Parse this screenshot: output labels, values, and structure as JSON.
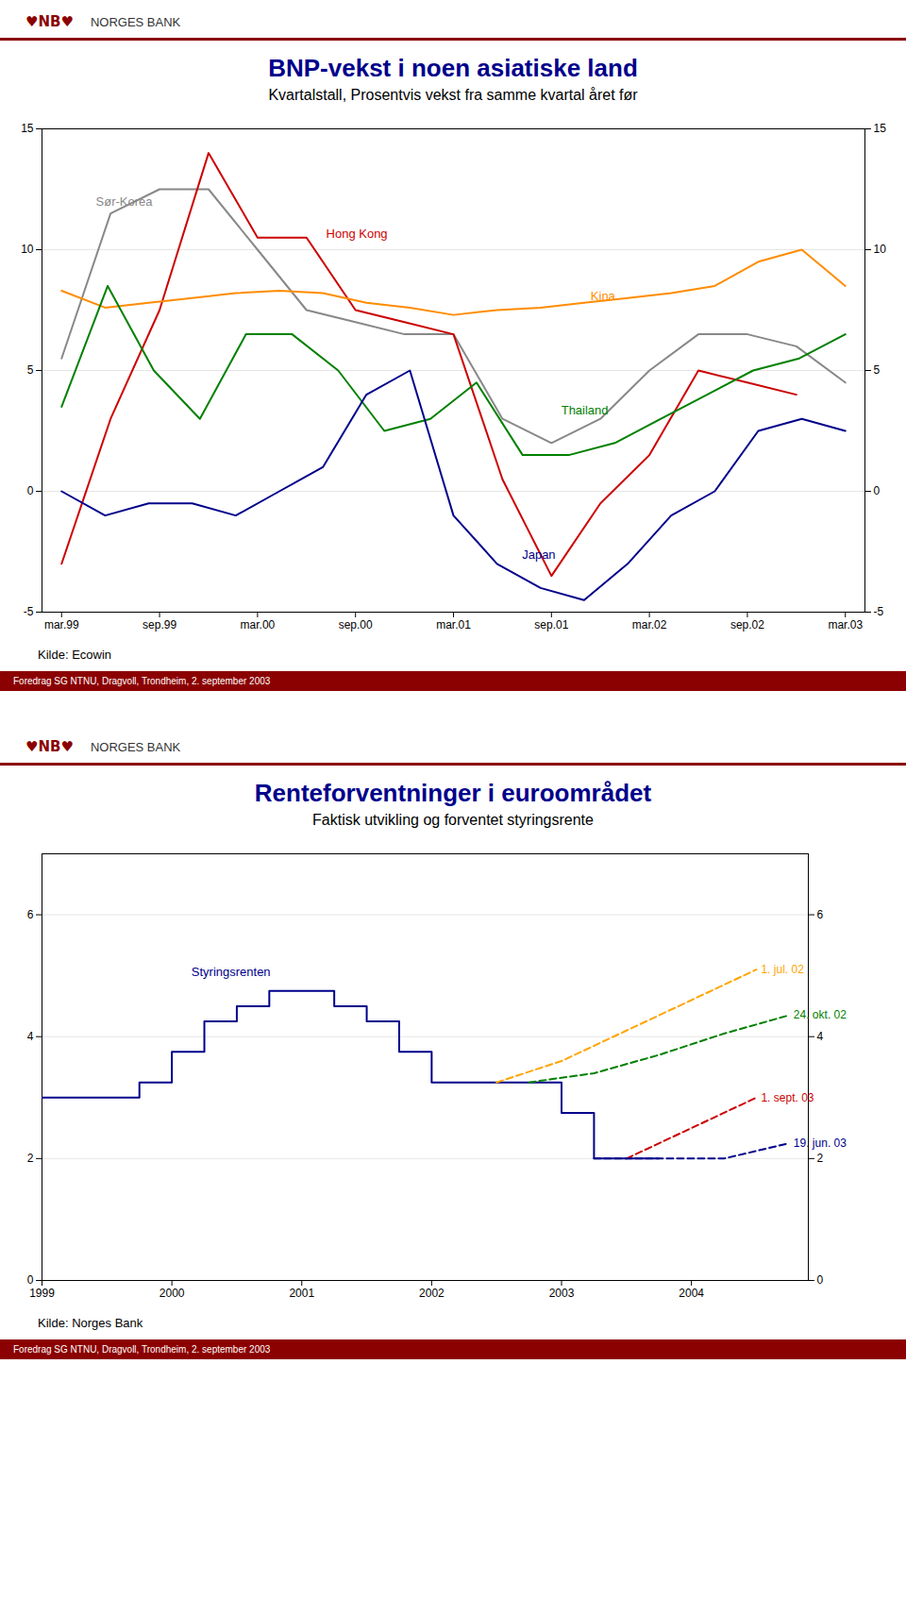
{
  "chart_data": [
    {
      "type": "line",
      "logo": "♥NB♥",
      "brand": "NORGES BANK",
      "title": "BNP-vekst i noen asiatiske land",
      "subtitle": "Kvartalstall, Prosentvis vekst fra samme kvartal året før",
      "source": "Kilde:  Ecowin",
      "footer": "Foredrag SG NTNU, Dragvoll, Trondheim, 2. september 2003",
      "xlim": [
        -0.2,
        8.2
      ],
      "xticks": [
        {
          "value": 0,
          "label": "mar.99"
        },
        {
          "value": 1,
          "label": "sep.99"
        },
        {
          "value": 2,
          "label": "mar.00"
        },
        {
          "value": 3,
          "label": "sep.00"
        },
        {
          "value": 4,
          "label": "mar.01"
        },
        {
          "value": 5,
          "label": "sep.01"
        },
        {
          "value": 6,
          "label": "mar.02"
        },
        {
          "value": 7,
          "label": "sep.02"
        },
        {
          "value": 8,
          "label": "mar.03"
        }
      ],
      "ylim": [
        -5,
        15
      ],
      "yticks": [
        -5,
        0,
        5,
        10,
        15
      ],
      "y2lim": [
        -5,
        15
      ],
      "y2ticks": [
        -5,
        0,
        5,
        10,
        15
      ],
      "grid": true,
      "series": [
        {
          "name": "Sør-Korea",
          "color": "#888888",
          "x": [
            0,
            0.5,
            1,
            1.5,
            2,
            2.5,
            3,
            3.5,
            4,
            4.5,
            5,
            5.5,
            6,
            6.5,
            7,
            7.5,
            8
          ],
          "values": [
            5.5,
            11.5,
            12.5,
            12.5,
            10.0,
            7.5,
            7.0,
            6.5,
            6.5,
            3.0,
            2.0,
            3.0,
            5.0,
            6.5,
            6.5,
            6.0,
            4.5
          ]
        },
        {
          "name": "Hong Kong",
          "color": "#cc0000",
          "x": [
            0,
            0.5,
            1,
            1.5,
            2,
            2.5,
            3,
            3.5,
            4,
            4.5,
            5,
            5.5,
            6,
            6.5,
            7,
            7.5
          ],
          "values": [
            -3.0,
            3.0,
            7.5,
            14.0,
            10.5,
            10.5,
            7.5,
            7.0,
            6.5,
            0.5,
            -3.5,
            -0.5,
            1.5,
            5.0,
            4.5,
            4.0
          ]
        },
        {
          "name": "Kina",
          "color": "#ff8c00",
          "x": [
            0,
            0.444444,
            0.888889,
            1.333333,
            1.777778,
            2.222222,
            2.666667,
            3.111111,
            3.555556,
            4,
            4.444444,
            4.888889,
            5.333333,
            5.777778,
            6.222222,
            6.666667,
            7.111111,
            7.555556,
            8
          ],
          "values": [
            8.3,
            7.6,
            7.8,
            8.0,
            8.2,
            8.3,
            8.2,
            7.8,
            7.6,
            7.3,
            7.5,
            7.6,
            7.8,
            8.0,
            8.2,
            8.5,
            9.5,
            10.0,
            8.5
          ]
        },
        {
          "name": "Thailand",
          "color": "#008000",
          "x": [
            0,
            0.470588,
            0.941176,
            1.411765,
            1.882353,
            2.352941,
            2.823529,
            3.294118,
            3.764706,
            4.235294,
            4.705882,
            5.176471,
            5.647059,
            6.117647,
            6.588235,
            7.058824,
            7.529412,
            8
          ],
          "values": [
            3.5,
            8.5,
            5.0,
            3.0,
            6.5,
            6.5,
            5.0,
            2.5,
            3.0,
            4.5,
            1.5,
            1.5,
            2.0,
            3.0,
            4.0,
            5.0,
            5.5,
            6.5
          ]
        },
        {
          "name": "Japan",
          "color": "#00008b",
          "x": [
            0,
            0.444444,
            0.888889,
            1.333333,
            1.777778,
            2.222222,
            2.666667,
            3.111111,
            3.555556,
            4,
            4.444444,
            4.888889,
            5.333333,
            5.777778,
            6.222222,
            6.666667,
            7.111111,
            7.555556,
            8
          ],
          "values": [
            0.0,
            -1.0,
            -0.5,
            -0.5,
            -1.0,
            0.0,
            1.0,
            4.0,
            5.0,
            -1.0,
            -3.0,
            -4.0,
            -4.5,
            -3.0,
            -1.0,
            0.0,
            2.5,
            3.0,
            2.5
          ]
        }
      ],
      "annotations": [
        {
          "text": "Sør-Korea",
          "x": 0.35,
          "y": 11.8,
          "color": "#888888"
        },
        {
          "text": "Hong Kong",
          "x": 2.7,
          "y": 10.5,
          "color": "#cc0000"
        },
        {
          "text": "Kina",
          "x": 5.4,
          "y": 7.9,
          "color": "#ff8c00"
        },
        {
          "text": "Thailand",
          "x": 5.1,
          "y": 3.2,
          "color": "#008000"
        },
        {
          "text": "Japan",
          "x": 4.7,
          "y": -2.8,
          "color": "#00008b"
        }
      ]
    },
    {
      "type": "line",
      "logo": "♥NB♥",
      "brand": "NORGES BANK",
      "title": "Renteforventninger i euroområdet",
      "subtitle": "Faktisk utvikling og forventet styringsrente",
      "source": "Kilde: Norges Bank",
      "footer": "Foredrag SG NTNU, Dragvoll, Trondheim, 2. september 2003",
      "xlim": [
        1999.0,
        2004.9
      ],
      "xticks": [
        1999,
        2000,
        2001,
        2002,
        2003,
        2004
      ],
      "ylim": [
        0,
        7
      ],
      "yticks": [
        0,
        2,
        4,
        6
      ],
      "y2lim": [
        0,
        7
      ],
      "y2ticks": [
        0,
        2,
        4,
        6
      ],
      "grid": true,
      "series": [
        {
          "name": "Styringsrenten",
          "color": "#00008b",
          "type": "step",
          "line_style": "solid",
          "x": [
            1999.0,
            1999.25,
            1999.5,
            1999.75,
            2000.0,
            2000.25,
            2000.5,
            2000.75,
            2001.0,
            2001.25,
            2001.5,
            2001.75,
            2002.0,
            2002.25,
            2002.5,
            2002.75,
            2003.0,
            2003.25,
            2003.5,
            2003.75
          ],
          "values": [
            3.0,
            3.0,
            3.0,
            3.25,
            3.75,
            4.25,
            4.5,
            4.75,
            4.75,
            4.5,
            4.25,
            3.75,
            3.25,
            3.25,
            3.25,
            3.25,
            2.75,
            2.0,
            2.0,
            2.0
          ]
        },
        {
          "name": "1. jul. 02",
          "color": "#ffa500",
          "type": "line",
          "line_style": "dashed",
          "x": [
            2002.5,
            2003.0,
            2003.5,
            2004.0,
            2004.5
          ],
          "values": [
            3.25,
            3.6,
            4.1,
            4.6,
            5.1
          ]
        },
        {
          "name": "24. okt. 02",
          "color": "#008000",
          "type": "line",
          "line_style": "dashed",
          "x": [
            2002.75,
            2003.25,
            2003.75,
            2004.25,
            2004.75
          ],
          "values": [
            3.25,
            3.4,
            3.7,
            4.05,
            4.35
          ]
        },
        {
          "name": "1. sept. 03",
          "color": "#cc0000",
          "type": "line",
          "line_style": "dashed",
          "x": [
            2003.5,
            2004.0,
            2004.5
          ],
          "values": [
            2.0,
            2.5,
            3.0
          ]
        },
        {
          "name": "19. jun. 03",
          "color": "#00008b",
          "type": "line",
          "line_style": "dashed",
          "x": [
            2003.25,
            2003.75,
            2004.25,
            2004.75
          ],
          "values": [
            2.0,
            2.0,
            2.0,
            2.25
          ]
        }
      ],
      "annotations": [
        {
          "text": "Styringsrenten",
          "x": 2000.15,
          "y": 5.0,
          "color": "#00008b"
        }
      ]
    }
  ]
}
